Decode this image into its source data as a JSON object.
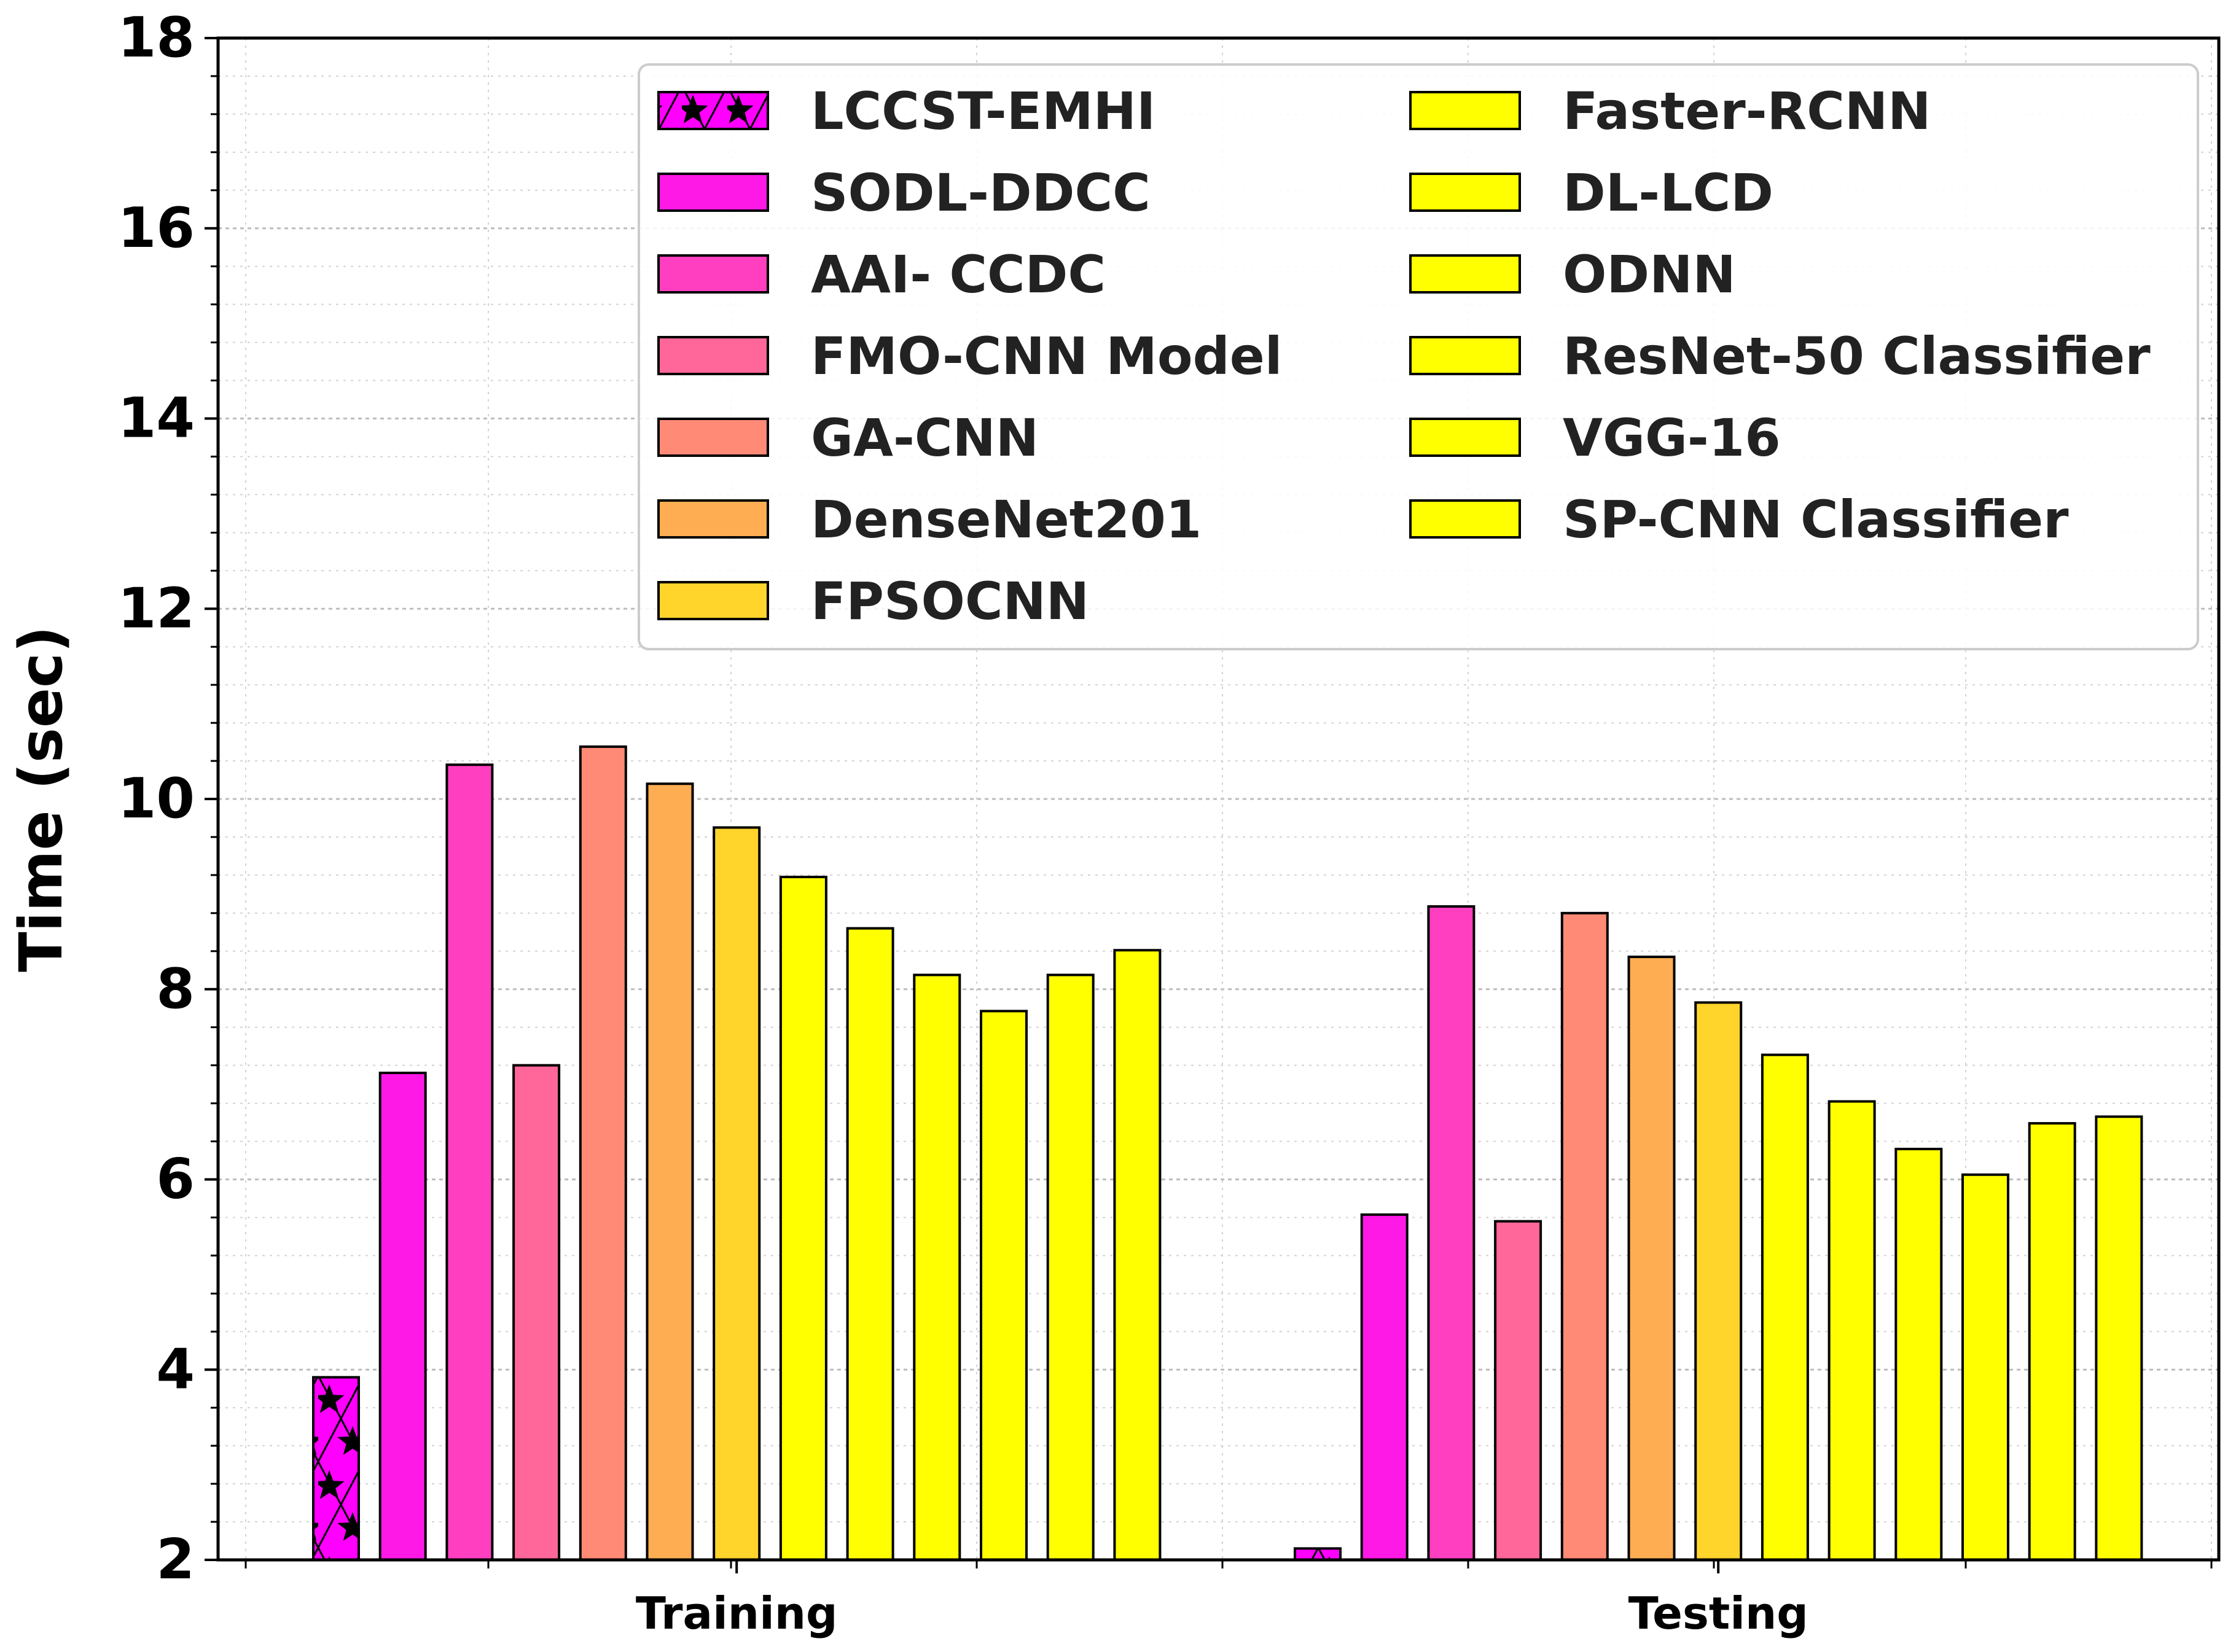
{
  "chart_data": {
    "type": "bar",
    "title": "",
    "xlabel": "",
    "ylabel": "Time (sec)",
    "ylim": [
      2,
      18
    ],
    "yticks": [
      "2",
      "4",
      "6",
      "8",
      "10",
      "12",
      "14",
      "16",
      "18"
    ],
    "grid": true,
    "legend_position": "top-right",
    "categories": [
      "Training",
      "Testing"
    ],
    "series": [
      {
        "name": "LCCST-EMHI",
        "color": "#ff00ff",
        "hatch": "star",
        "values": [
          3.92,
          2.12
        ]
      },
      {
        "name": "SODL-DDCC",
        "color": "#ff19e6",
        "values": [
          7.12,
          5.63
        ]
      },
      {
        "name": "AAI- CCDC",
        "color": "#ff3fc0",
        "values": [
          10.36,
          8.87
        ]
      },
      {
        "name": "FMO-CNN Model",
        "color": "#ff6699",
        "values": [
          7.2,
          5.56
        ]
      },
      {
        "name": "GA-CNN",
        "color": "#ff8a75",
        "values": [
          10.55,
          8.8
        ]
      },
      {
        "name": "DenseNet201",
        "color": "#ffad52",
        "values": [
          10.16,
          8.34
        ]
      },
      {
        "name": "FPSOCNN",
        "color": "#ffd42b",
        "values": [
          9.7,
          7.86
        ]
      },
      {
        "name": "Faster-RCNN",
        "color": "#ffff00",
        "values": [
          9.18,
          7.31
        ]
      },
      {
        "name": "DL-LCD",
        "color": "#ffff00",
        "values": [
          8.64,
          6.82
        ]
      },
      {
        "name": "ODNN",
        "color": "#ffff00",
        "values": [
          8.15,
          6.32
        ]
      },
      {
        "name": "ResNet-50 Classifier",
        "color": "#ffff00",
        "values": [
          7.77,
          6.05
        ]
      },
      {
        "name": "VGG-16",
        "color": "#ffff00",
        "values": [
          8.15,
          6.59
        ]
      },
      {
        "name": "SP-CNN Classifier",
        "color": "#ffff00",
        "values": [
          8.41,
          6.66
        ]
      }
    ]
  }
}
